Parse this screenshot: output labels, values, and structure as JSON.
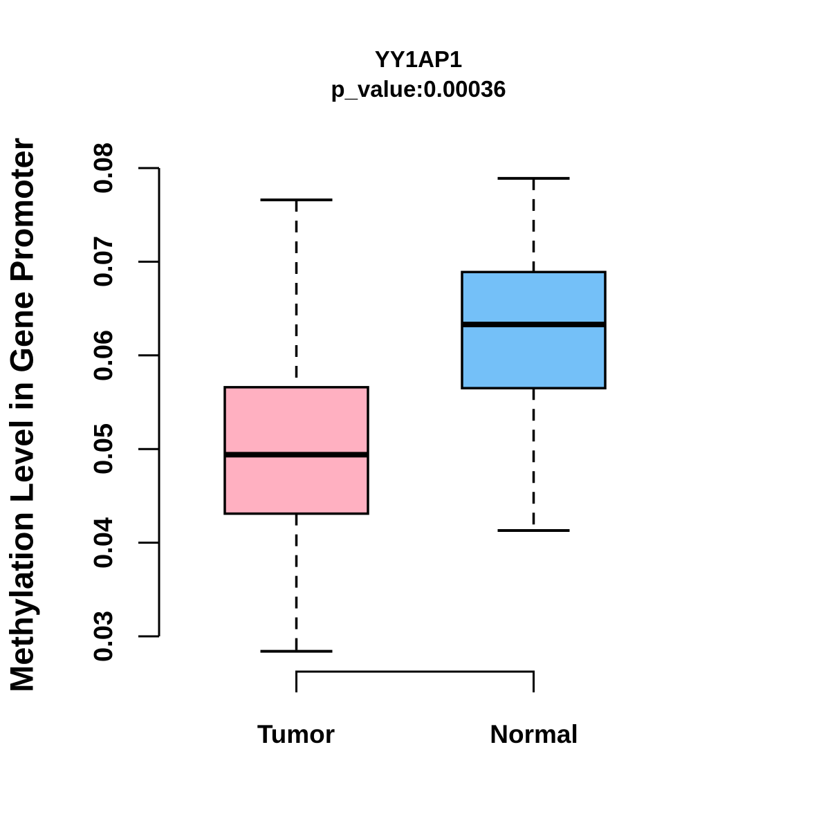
{
  "chart_data": {
    "type": "boxplot",
    "title": "YY1AP1",
    "subtitle": "p_value:0.00036",
    "ylabel": "Methylation Level in Gene Promoter",
    "xlabel": "",
    "ylim": [
      0.03,
      0.08
    ],
    "yticks": [
      0.08,
      0.07,
      0.06,
      0.05,
      0.04,
      0.03
    ],
    "ytick_labels": [
      "0.08",
      "0.07",
      "0.06",
      "0.05",
      "0.04",
      "0.03"
    ],
    "categories": [
      "Tumor",
      "Normal"
    ],
    "grid": "off",
    "legend": "none",
    "groups": [
      {
        "label": "Tumor",
        "fill_color": "#FFB0C1",
        "whisker_low": 0.0284,
        "q1": 0.0431,
        "median": 0.0494,
        "q3": 0.0566,
        "whisker_high": 0.0766,
        "outliers": []
      },
      {
        "label": "Normal",
        "fill_color": "#74C0F8",
        "whisker_low": 0.0413,
        "q1": 0.0565,
        "median": 0.0633,
        "q3": 0.0689,
        "whisker_high": 0.0789,
        "outliers": []
      }
    ],
    "colors": {
      "line": "#000000",
      "background": "#FFFFFF",
      "tumor_fill": "#FFB0C1",
      "normal_fill": "#74C0F8"
    }
  }
}
